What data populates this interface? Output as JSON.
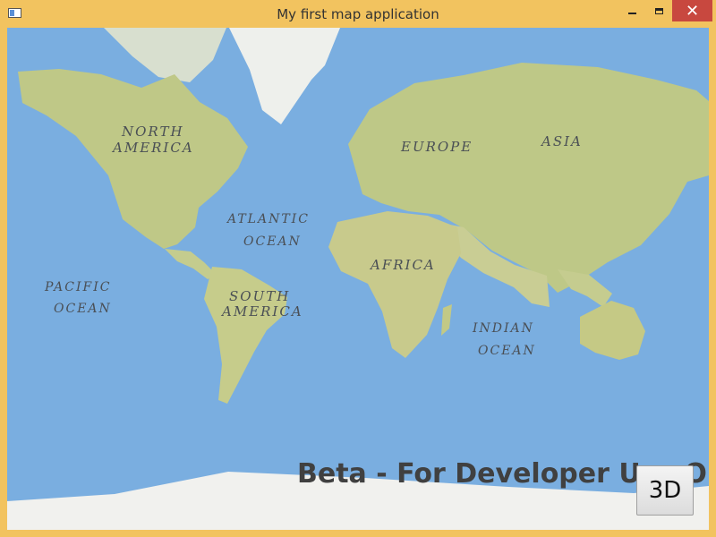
{
  "window": {
    "title": "My first map application",
    "controls": {
      "minimize": "—",
      "maximize": "□",
      "close": "✕"
    }
  },
  "map": {
    "labels": {
      "north_america_1": "NORTH",
      "north_america_2": "AMERICA",
      "europe": "EUROPE",
      "asia": "ASIA",
      "atlantic_1": "ATLANTIC",
      "atlantic_2": "OCEAN",
      "africa": "AFRICA",
      "pacific_1": "PACIFIC",
      "pacific_2": "OCEAN",
      "south_america_1": "SOUTH",
      "south_america_2": "AMERICA",
      "indian_1": "INDIAN",
      "indian_2": "OCEAN"
    },
    "watermark": "Beta - For Developer Use Only",
    "button_3d": "3D"
  },
  "colors": {
    "title_bar": "#f2c35f",
    "ocean": "#7aaee0",
    "land": "#bfc887",
    "ice": "#f1f1ee",
    "close_button": "#c8483f"
  }
}
